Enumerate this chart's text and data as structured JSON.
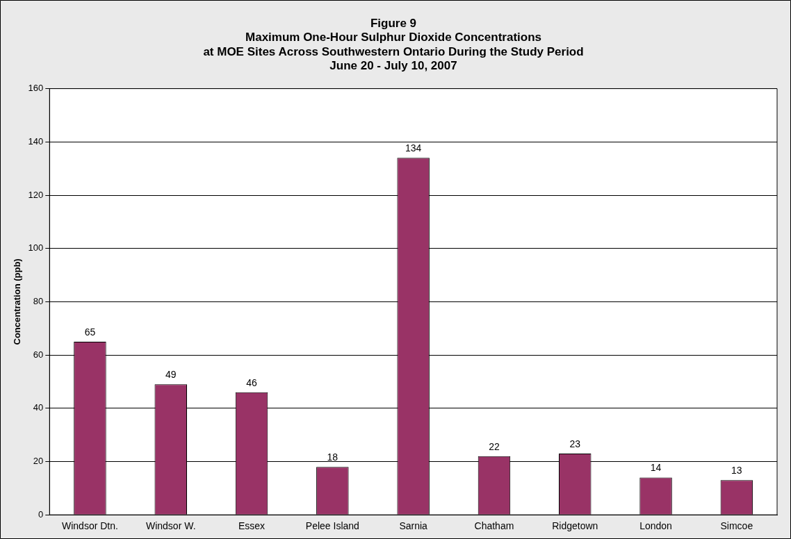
{
  "chart_data": {
    "type": "bar",
    "title": "Figure 9\nMaximum One-Hour Sulphur Dioxide Concentrations\nat MOE Sites Across Southwestern Ontario During the Study Period\nJune 20 - July 10, 2007",
    "ylabel": "Concentration (ppb)",
    "categories": [
      "Windsor Dtn.",
      "Windsor W.",
      "Essex",
      "Pelee Island",
      "Sarnia",
      "Chatham",
      "Ridgetown",
      "London",
      "Simcoe"
    ],
    "values": [
      65,
      49,
      46,
      18,
      134,
      22,
      23,
      14,
      13
    ],
    "color": "#993366",
    "ylim": [
      0,
      160
    ],
    "yticks": [
      0,
      20,
      40,
      60,
      80,
      100,
      120,
      140,
      160
    ],
    "grid": "y",
    "legend": false,
    "data_labels": true
  }
}
